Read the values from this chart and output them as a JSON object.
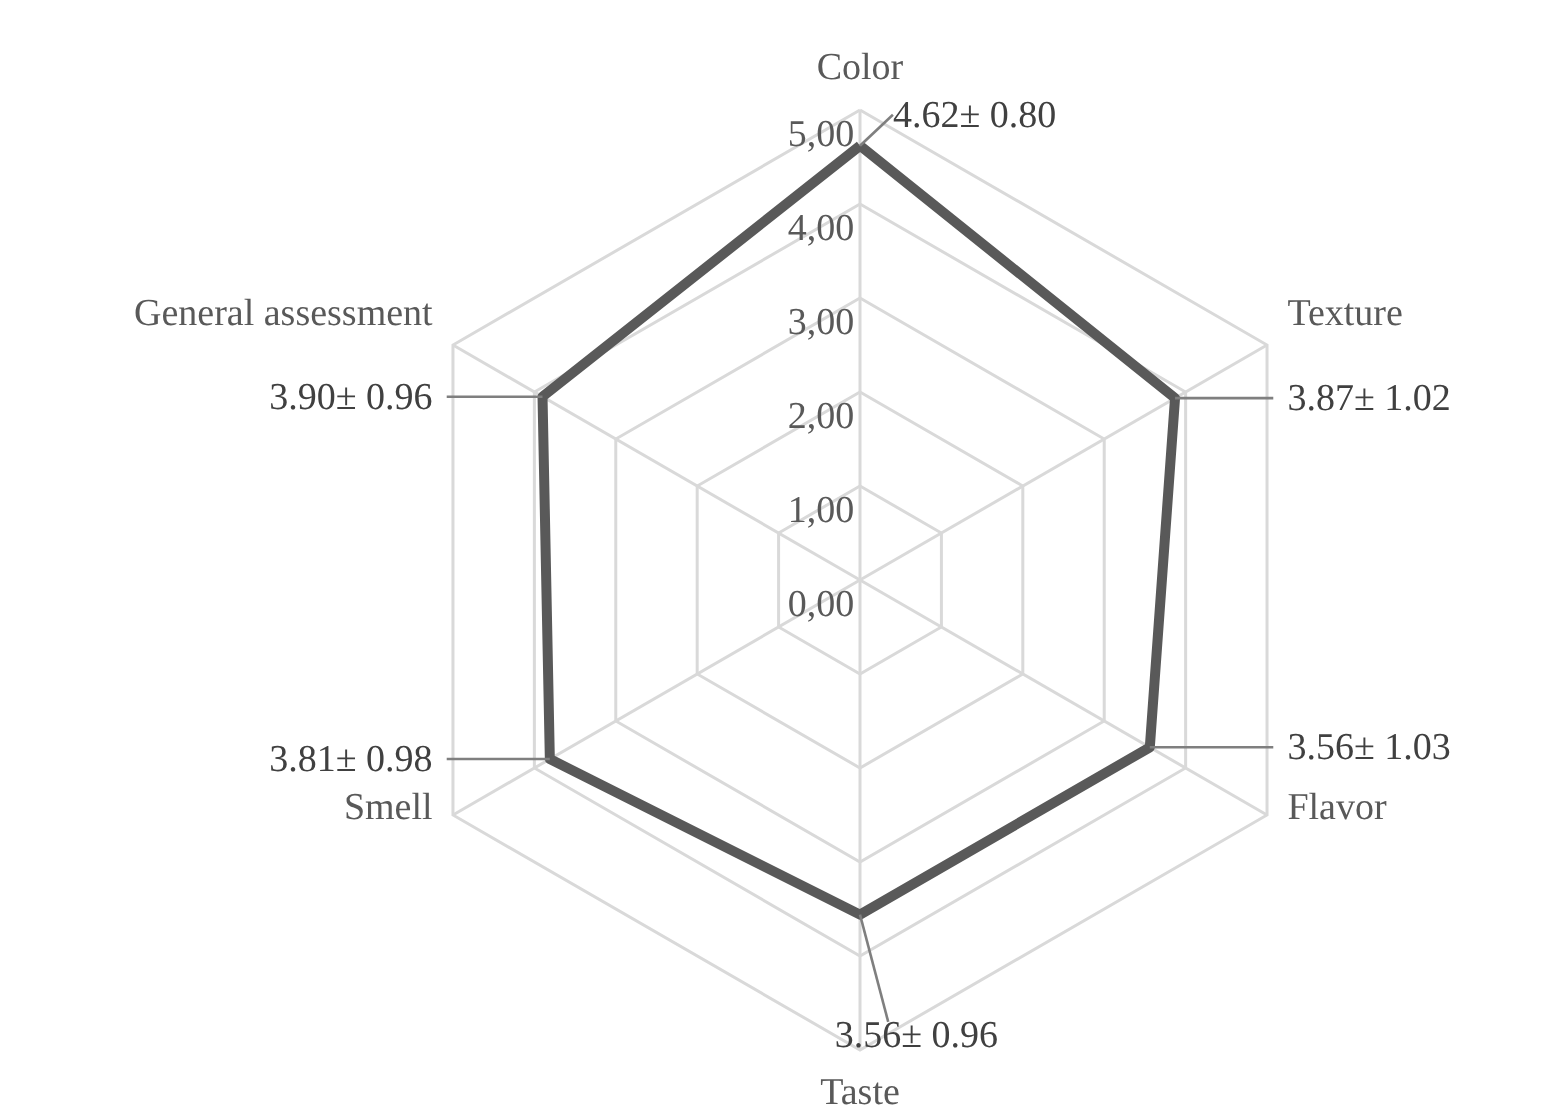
{
  "chart_data": {
    "type": "radar",
    "categories": [
      "Color",
      "Texture",
      "Flavor",
      "Taste",
      "Smell",
      "General assessment"
    ],
    "series": [
      {
        "color": "#595959",
        "values": [
          4.62,
          3.87,
          3.56,
          3.56,
          3.81,
          3.9
        ],
        "value_labels": [
          "4.62± 0.80",
          "3.87± 1.02",
          "3.56± 1.03",
          "3.56± 0.96",
          "3.81± 0.98",
          "3.90± 0.96"
        ]
      }
    ],
    "ylim": [
      0,
      5
    ],
    "yticks": [
      {
        "value": 0,
        "label": "0,00"
      },
      {
        "value": 1,
        "label": "1,00"
      },
      {
        "value": 2,
        "label": "2,00"
      },
      {
        "value": 3,
        "label": "3,00"
      },
      {
        "value": 4,
        "label": "4,00"
      },
      {
        "value": 5,
        "label": "5,00"
      }
    ],
    "grid": true
  }
}
